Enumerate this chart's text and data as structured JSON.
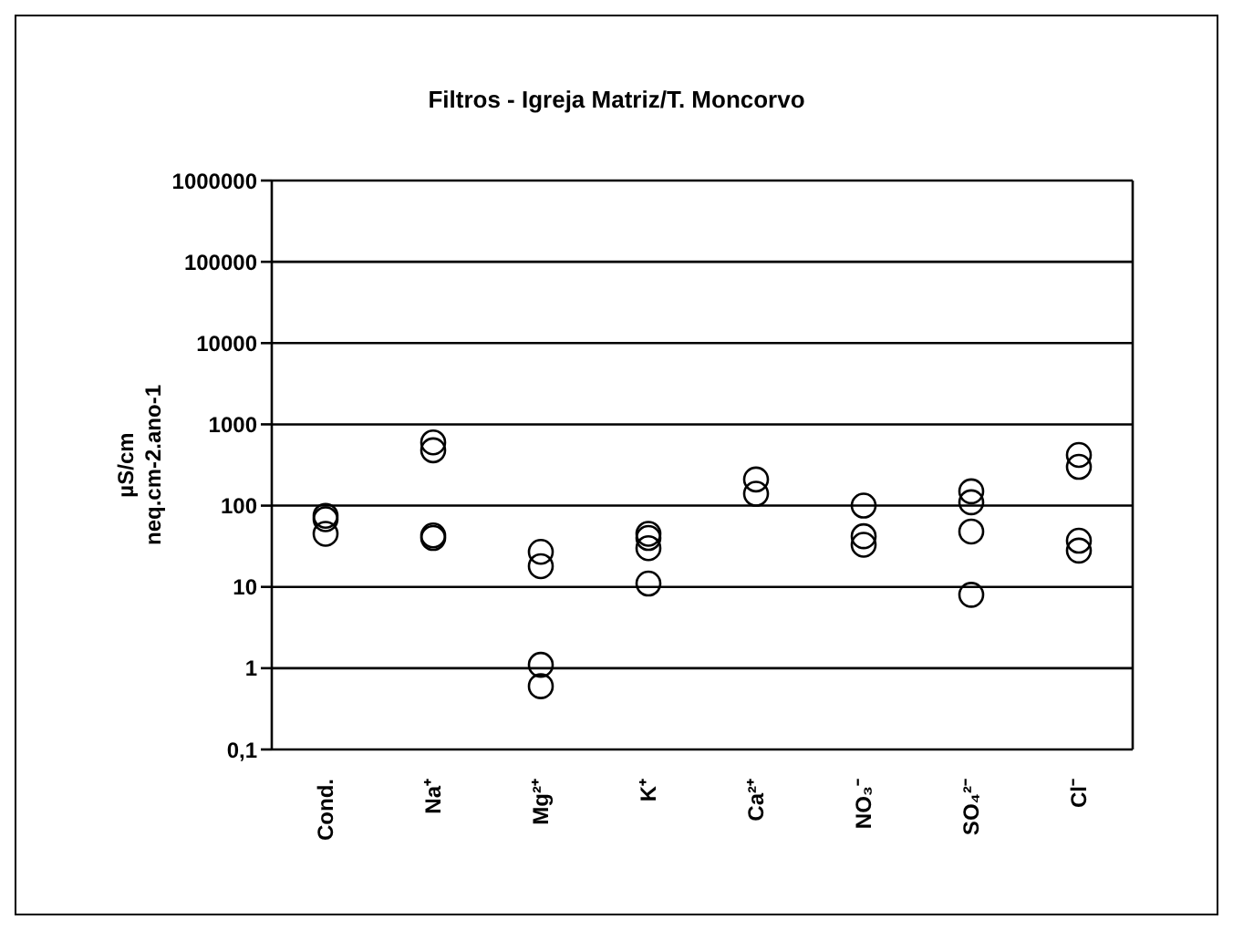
{
  "chart_data": {
    "type": "scatter",
    "title": "Filtros - Igreja Matriz/T. Moncorvo",
    "ylabel": "µS/cm\nneq.cm-2.ano-1",
    "categories": [
      "Cond.",
      "Na⁺",
      "Mg²⁺",
      "K⁺",
      "Ca²⁺",
      "NO₃⁻",
      "SO₄²⁻",
      "Cl⁻"
    ],
    "series": [
      {
        "color": "#000000",
        "values": [
          75,
          600,
          27,
          45,
          210,
          100,
          150,
          420
        ]
      },
      {
        "color": "#000000",
        "values": [
          68,
          480,
          18,
          40,
          140,
          42,
          110,
          300
        ]
      },
      {
        "color": "#000000",
        "values": [
          45,
          43,
          1.1,
          30,
          null,
          33,
          48,
          37
        ]
      },
      {
        "color": "#000000",
        "values": [
          null,
          40,
          0.6,
          11,
          null,
          null,
          8,
          28
        ]
      }
    ],
    "log": "y",
    "ylim": [
      0.1,
      1000000
    ],
    "yticks": [
      {
        "value": 0.1,
        "label": "0,1"
      },
      1,
      10,
      100,
      1000,
      10000,
      100000,
      1000000
    ],
    "grid": "y",
    "legend": false,
    "marker": "circle"
  }
}
